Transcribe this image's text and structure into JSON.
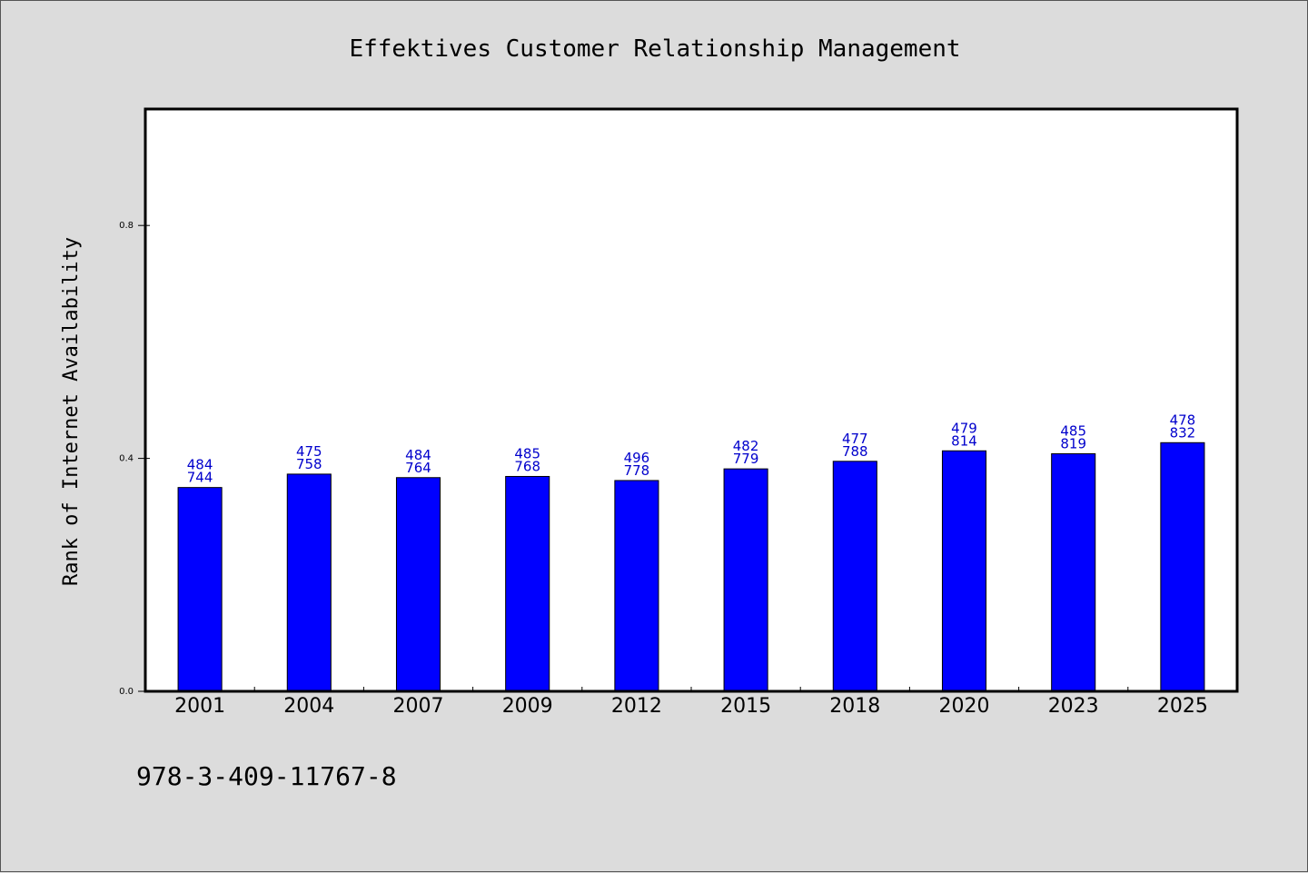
{
  "chart_data": {
    "type": "bar",
    "title": "Effektives Customer Relationship Management",
    "xlabel": "",
    "ylabel": "Rank of Internet Availability",
    "categories": [
      "2001",
      "2004",
      "2007",
      "2009",
      "2012",
      "2015",
      "2018",
      "2020",
      "2023",
      "2025"
    ],
    "values": [
      0.35,
      0.373,
      0.367,
      0.369,
      0.362,
      0.382,
      0.395,
      0.413,
      0.408,
      0.427
    ],
    "label_top": [
      "484",
      "475",
      "484",
      "485",
      "496",
      "482",
      "477",
      "479",
      "485",
      "478"
    ],
    "label_bottom": [
      "744",
      "758",
      "764",
      "768",
      "778",
      "779",
      "788",
      "814",
      "819",
      "832"
    ],
    "ylim": [
      0,
      1.0
    ],
    "yticks": [
      "0.0",
      "0.4",
      "0.8"
    ],
    "ytick_values": [
      0.0,
      0.4,
      0.8
    ],
    "grid": false,
    "bar_color": "#0000ff",
    "label_color": "#0000cc",
    "plot_background": "#ffffff",
    "figure_background": "#dcdcdc"
  },
  "footer": {
    "isbn": "978-3-409-11767-8"
  }
}
